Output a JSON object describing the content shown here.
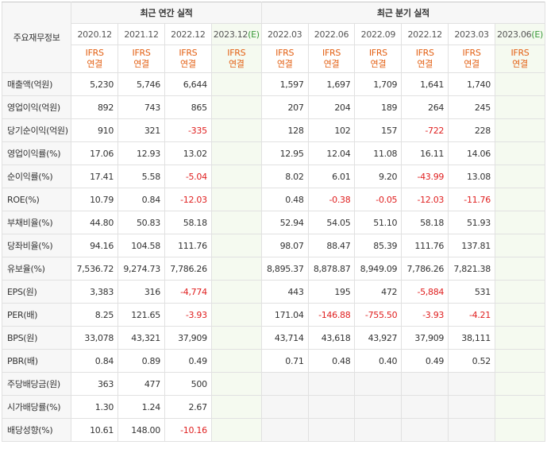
{
  "table": {
    "corner_label": "주요재무정보",
    "group_annual": "최근 연간 실적",
    "group_quarter": "최근 분기 실적",
    "periods_annual": [
      {
        "label": "2020.12",
        "estimate": false
      },
      {
        "label": "2021.12",
        "estimate": false
      },
      {
        "label": "2022.12",
        "estimate": false
      },
      {
        "label": "2023.12",
        "estimate": true,
        "suffix": "(E)"
      }
    ],
    "periods_quarter": [
      {
        "label": "2022.03",
        "estimate": false
      },
      {
        "label": "2022.06",
        "estimate": false
      },
      {
        "label": "2022.09",
        "estimate": false
      },
      {
        "label": "2022.12",
        "estimate": false
      },
      {
        "label": "2023.03",
        "estimate": false
      },
      {
        "label": "2023.06",
        "estimate": true,
        "suffix": "(E)"
      }
    ],
    "ifrs_top": "IFRS",
    "ifrs_bottom": "연결",
    "colors": {
      "negative": "#e02020",
      "ifrs": "#e35f12",
      "estimate_bg": "#f5faf0"
    },
    "rows": [
      {
        "label": "매출액(억원)",
        "values": [
          "5,230",
          "5,746",
          "6,644",
          "",
          "1,597",
          "1,697",
          "1,709",
          "1,641",
          "1,740",
          ""
        ]
      },
      {
        "label": "영업이익(억원)",
        "values": [
          "892",
          "743",
          "865",
          "",
          "207",
          "204",
          "189",
          "264",
          "245",
          ""
        ]
      },
      {
        "label": "당기순이익(억원)",
        "values": [
          "910",
          "321",
          "-335",
          "",
          "128",
          "102",
          "157",
          "-722",
          "228",
          ""
        ]
      },
      {
        "label": "영업이익률(%)",
        "values": [
          "17.06",
          "12.93",
          "13.02",
          "",
          "12.95",
          "12.04",
          "11.08",
          "16.11",
          "14.06",
          ""
        ]
      },
      {
        "label": "순이익률(%)",
        "values": [
          "17.41",
          "5.58",
          "-5.04",
          "",
          "8.02",
          "6.01",
          "9.20",
          "-43.99",
          "13.08",
          ""
        ]
      },
      {
        "label": "ROE(%)",
        "values": [
          "10.79",
          "0.84",
          "-12.03",
          "",
          "0.48",
          "-0.38",
          "-0.05",
          "-12.03",
          "-11.76",
          ""
        ]
      },
      {
        "label": "부채비율(%)",
        "values": [
          "44.80",
          "50.83",
          "58.18",
          "",
          "52.94",
          "54.05",
          "51.10",
          "58.18",
          "51.93",
          ""
        ]
      },
      {
        "label": "당좌비율(%)",
        "values": [
          "94.16",
          "104.58",
          "111.76",
          "",
          "98.07",
          "88.47",
          "85.39",
          "111.76",
          "137.81",
          ""
        ]
      },
      {
        "label": "유보율(%)",
        "values": [
          "7,536.72",
          "9,274.73",
          "7,786.26",
          "",
          "8,895.37",
          "8,878.87",
          "8,949.09",
          "7,786.26",
          "7,821.38",
          ""
        ]
      },
      {
        "label": "EPS(원)",
        "values": [
          "3,383",
          "316",
          "-4,774",
          "",
          "443",
          "195",
          "472",
          "-5,884",
          "531",
          ""
        ]
      },
      {
        "label": "PER(배)",
        "values": [
          "8.25",
          "121.65",
          "-3.93",
          "",
          "171.04",
          "-146.88",
          "-755.50",
          "-3.93",
          "-4.21",
          ""
        ]
      },
      {
        "label": "BPS(원)",
        "values": [
          "33,078",
          "43,321",
          "37,909",
          "",
          "43,714",
          "43,618",
          "43,927",
          "37,909",
          "38,111",
          ""
        ]
      },
      {
        "label": "PBR(배)",
        "values": [
          "0.84",
          "0.89",
          "0.49",
          "",
          "0.71",
          "0.48",
          "0.40",
          "0.49",
          "0.52",
          ""
        ]
      },
      {
        "label": "주당배당금(원)",
        "values": [
          "363",
          "477",
          "500",
          "",
          "",
          "",
          "",
          "",
          "",
          ""
        ]
      },
      {
        "label": "시가배당률(%)",
        "values": [
          "1.30",
          "1.24",
          "2.67",
          "",
          "",
          "",
          "",
          "",
          "",
          ""
        ]
      },
      {
        "label": "배당성향(%)",
        "values": [
          "10.61",
          "148.00",
          "-10.16",
          "",
          "",
          "",
          "",
          "",
          "",
          ""
        ]
      }
    ]
  }
}
